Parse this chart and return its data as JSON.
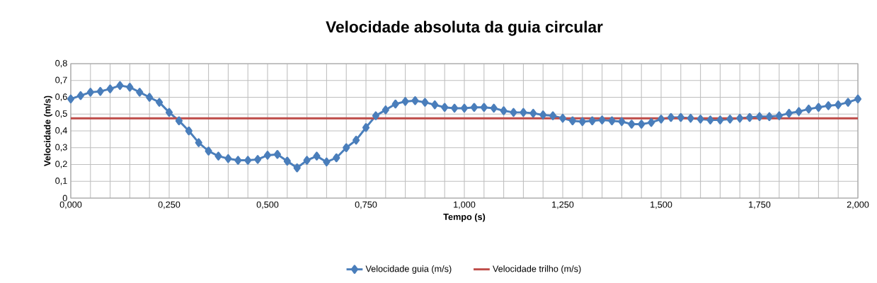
{
  "chart_data": {
    "type": "line",
    "title": "Velocidade absoluta da guia circular",
    "xlabel": "Tempo (s)",
    "ylabel": "Velocidade (m/s)",
    "xlim": [
      0,
      2
    ],
    "ylim": [
      0,
      0.8
    ],
    "xticks": [
      {
        "value": 0,
        "label": "0,000"
      },
      {
        "value": 0.05,
        "label": null
      },
      {
        "value": 0.1,
        "label": null
      },
      {
        "value": 0.15,
        "label": null
      },
      {
        "value": 0.2,
        "label": null
      },
      {
        "value": 0.25,
        "label": "0,250"
      },
      {
        "value": 0.3,
        "label": null
      },
      {
        "value": 0.35,
        "label": null
      },
      {
        "value": 0.4,
        "label": null
      },
      {
        "value": 0.45,
        "label": null
      },
      {
        "value": 0.5,
        "label": "0,500"
      },
      {
        "value": 0.55,
        "label": null
      },
      {
        "value": 0.6,
        "label": null
      },
      {
        "value": 0.65,
        "label": null
      },
      {
        "value": 0.7,
        "label": null
      },
      {
        "value": 0.75,
        "label": "0,750"
      },
      {
        "value": 0.8,
        "label": null
      },
      {
        "value": 0.85,
        "label": null
      },
      {
        "value": 0.9,
        "label": null
      },
      {
        "value": 0.95,
        "label": null
      },
      {
        "value": 1,
        "label": "1,000"
      },
      {
        "value": 1.05,
        "label": null
      },
      {
        "value": 1.1,
        "label": null
      },
      {
        "value": 1.15,
        "label": null
      },
      {
        "value": 1.2,
        "label": null
      },
      {
        "value": 1.25,
        "label": "1,250"
      },
      {
        "value": 1.3,
        "label": null
      },
      {
        "value": 1.35,
        "label": null
      },
      {
        "value": 1.4,
        "label": null
      },
      {
        "value": 1.45,
        "label": null
      },
      {
        "value": 1.5,
        "label": "1,500"
      },
      {
        "value": 1.55,
        "label": null
      },
      {
        "value": 1.6,
        "label": null
      },
      {
        "value": 1.65,
        "label": null
      },
      {
        "value": 1.7,
        "label": null
      },
      {
        "value": 1.75,
        "label": "1,750"
      },
      {
        "value": 1.8,
        "label": null
      },
      {
        "value": 1.85,
        "label": null
      },
      {
        "value": 1.9,
        "label": null
      },
      {
        "value": 1.95,
        "label": null
      },
      {
        "value": 2,
        "label": "2,000"
      }
    ],
    "yticks": [
      0,
      {
        "value": 0.1,
        "label": "0,1"
      },
      {
        "value": 0.2,
        "label": "0,2"
      },
      {
        "value": 0.3,
        "label": "0,3"
      },
      {
        "value": 0.4,
        "label": "0,4"
      },
      {
        "value": 0.5,
        "label": "0,5"
      },
      {
        "value": 0.6,
        "label": "0,6"
      },
      {
        "value": 0.7,
        "label": "0,7"
      },
      {
        "value": 0.8,
        "label": "0,8"
      }
    ],
    "grid": true,
    "legend": "bottom",
    "line_style": "solid",
    "series": [
      {
        "name": "Velocidade guia (m/s)",
        "color": "#4a7ebb",
        "marker": "diamond",
        "x": [
          0,
          0.025,
          0.05,
          0.075,
          0.1,
          0.125,
          0.15,
          0.175,
          0.2,
          0.225,
          0.25,
          0.275,
          0.3,
          0.325,
          0.35,
          0.375,
          0.4,
          0.425,
          0.45,
          0.475,
          0.5,
          0.525,
          0.55,
          0.575,
          0.6,
          0.625,
          0.65,
          0.675,
          0.7,
          0.725,
          0.75,
          0.775,
          0.8,
          0.825,
          0.85,
          0.875,
          0.9,
          0.925,
          0.95,
          0.975,
          1,
          1.025,
          1.05,
          1.075,
          1.1,
          1.125,
          1.15,
          1.175,
          1.2,
          1.225,
          1.25,
          1.275,
          1.3,
          1.325,
          1.35,
          1.375,
          1.4,
          1.425,
          1.45,
          1.475,
          1.5,
          1.525,
          1.55,
          1.575,
          1.6,
          1.625,
          1.65,
          1.675,
          1.7,
          1.725,
          1.75,
          1.775,
          1.8,
          1.825,
          1.85,
          1.875,
          1.9,
          1.925,
          1.95,
          1.975,
          2
        ],
        "values": [
          0.59,
          0.61,
          0.63,
          0.635,
          0.65,
          0.67,
          0.66,
          0.63,
          0.6,
          0.57,
          0.51,
          0.46,
          0.4,
          0.33,
          0.28,
          0.25,
          0.235,
          0.225,
          0.225,
          0.23,
          0.255,
          0.26,
          0.22,
          0.18,
          0.225,
          0.25,
          0.215,
          0.24,
          0.3,
          0.345,
          0.42,
          0.49,
          0.525,
          0.56,
          0.575,
          0.58,
          0.57,
          0.555,
          0.54,
          0.535,
          0.535,
          0.54,
          0.54,
          0.535,
          0.52,
          0.51,
          0.51,
          0.505,
          0.495,
          0.49,
          0.475,
          0.46,
          0.455,
          0.46,
          0.465,
          0.46,
          0.455,
          0.44,
          0.44,
          0.45,
          0.47,
          0.48,
          0.48,
          0.475,
          0.47,
          0.465,
          0.465,
          0.47,
          0.475,
          0.48,
          0.485,
          0.485,
          0.49,
          0.505,
          0.515,
          0.53,
          0.54,
          0.55,
          0.555,
          0.57,
          0.59
        ]
      },
      {
        "name": "Velocidade trilho (m/s)",
        "color": "#be4b48",
        "marker": "none",
        "x": [
          0,
          2
        ],
        "values": [
          0.475,
          0.475
        ]
      }
    ]
  }
}
